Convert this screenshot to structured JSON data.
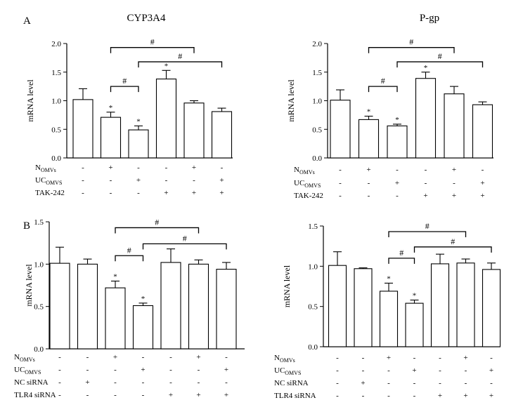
{
  "panel_labels": [
    "A",
    "B"
  ],
  "chart_data": [
    {
      "type": "bar",
      "title": "CYP3A4",
      "ylabel": "mRNA level",
      "xlabel": "",
      "ylim": [
        0,
        2.0
      ],
      "yticks": [
        "0.0",
        "0.5",
        "1.0",
        "1.5",
        "2.0"
      ],
      "yticks_values": [
        0,
        0.5,
        1.0,
        1.5,
        2.0
      ],
      "values": [
        1.02,
        0.71,
        0.49,
        1.38,
        0.96,
        0.81
      ],
      "errors": [
        0.19,
        0.09,
        0.07,
        0.15,
        0.04,
        0.06
      ],
      "stars": [
        false,
        true,
        true,
        true,
        false,
        false
      ],
      "brackets": [
        {
          "from": 1,
          "to": 2,
          "level": 1.25,
          "label": "#"
        },
        {
          "from": 1,
          "to": 4,
          "level": 1.93,
          "label": "#"
        },
        {
          "from": 2,
          "to": 5,
          "level": 1.68,
          "label": "#"
        }
      ],
      "rows": [
        {
          "label": "N",
          "sub": "OMVs",
          "marks": [
            "-",
            "+",
            "-",
            "-",
            "+",
            "-"
          ]
        },
        {
          "label": "UC",
          "sub": "OMVS",
          "marks": [
            "-",
            "-",
            "+",
            "-",
            "-",
            "+"
          ]
        },
        {
          "label": "TAK-242",
          "sub": "",
          "marks": [
            "-",
            "-",
            "-",
            "+",
            "+",
            "+"
          ]
        }
      ]
    },
    {
      "type": "bar",
      "title": "P-gp",
      "ylabel": "mRNA level",
      "xlabel": "",
      "ylim": [
        0,
        2.0
      ],
      "yticks": [
        "0.0",
        "0.5",
        "1.0",
        "1.5",
        "2.0"
      ],
      "yticks_values": [
        0,
        0.5,
        1.0,
        1.5,
        2.0
      ],
      "values": [
        1.01,
        0.67,
        0.56,
        1.39,
        1.12,
        0.93
      ],
      "errors": [
        0.18,
        0.06,
        0.03,
        0.11,
        0.13,
        0.05
      ],
      "stars": [
        false,
        true,
        true,
        true,
        false,
        false
      ],
      "brackets": [
        {
          "from": 1,
          "to": 2,
          "level": 1.25,
          "label": "#"
        },
        {
          "from": 1,
          "to": 4,
          "level": 1.93,
          "label": "#"
        },
        {
          "from": 2,
          "to": 5,
          "level": 1.68,
          "label": "#"
        }
      ],
      "rows": [
        {
          "label": "N",
          "sub": "OMVs",
          "marks": [
            "-",
            "+",
            "-",
            "-",
            "+",
            "-"
          ]
        },
        {
          "label": "UC",
          "sub": "OMVS",
          "marks": [
            "-",
            "-",
            "+",
            "-",
            "-",
            "+"
          ]
        },
        {
          "label": "TAK-242",
          "sub": "",
          "marks": [
            "-",
            "-",
            "-",
            "+",
            "+",
            "+"
          ]
        }
      ]
    },
    {
      "type": "bar",
      "title": "",
      "ylabel": "mRNA level",
      "xlabel": "",
      "ylim": [
        0,
        1.5
      ],
      "yticks": [
        "0.0",
        "0.5",
        "1.0",
        "1.5"
      ],
      "yticks_values": [
        0,
        0.5,
        1.0,
        1.5
      ],
      "values": [
        1.01,
        1.0,
        0.72,
        0.51,
        1.02,
        1.0,
        0.94
      ],
      "errors": [
        0.19,
        0.06,
        0.08,
        0.03,
        0.16,
        0.05,
        0.08
      ],
      "stars": [
        false,
        false,
        true,
        true,
        false,
        false,
        false
      ],
      "brackets": [
        {
          "from": 2,
          "to": 3,
          "level": 1.1,
          "label": "#"
        },
        {
          "from": 2,
          "to": 5,
          "level": 1.43,
          "label": "#"
        },
        {
          "from": 3,
          "to": 6,
          "level": 1.24,
          "label": "#"
        }
      ],
      "rows": [
        {
          "label": "N",
          "sub": "OMVs",
          "marks": [
            "-",
            "-",
            "+",
            "-",
            "-",
            "+",
            "-"
          ]
        },
        {
          "label": "UC",
          "sub": "OMVS",
          "marks": [
            "-",
            "-",
            "-",
            "+",
            "-",
            "-",
            "+"
          ]
        },
        {
          "label": "NC siRNA",
          "sub": "",
          "marks": [
            "-",
            "+",
            "-",
            "-",
            "-",
            "-",
            "-"
          ]
        },
        {
          "label": "TLR4 siRNA",
          "sub": "",
          "marks": [
            "-",
            "-",
            "-",
            "-",
            "+",
            "+",
            "+"
          ]
        }
      ]
    },
    {
      "type": "bar",
      "title": "",
      "ylabel": "mRNA level",
      "xlabel": "",
      "ylim": [
        0,
        1.5
      ],
      "yticks": [
        "0.0",
        "0.5",
        "1.0",
        "1.5"
      ],
      "yticks_values": [
        0,
        0.5,
        1.0,
        1.5
      ],
      "values": [
        1.01,
        0.97,
        0.69,
        0.54,
        1.03,
        1.04,
        0.96
      ],
      "errors": [
        0.17,
        0.01,
        0.1,
        0.04,
        0.12,
        0.05,
        0.08
      ],
      "stars": [
        false,
        false,
        true,
        true,
        false,
        false,
        false
      ],
      "brackets": [
        {
          "from": 2,
          "to": 3,
          "level": 1.1,
          "label": "#"
        },
        {
          "from": 2,
          "to": 5,
          "level": 1.43,
          "label": "#"
        },
        {
          "from": 3,
          "to": 6,
          "level": 1.24,
          "label": "#"
        }
      ],
      "rows": [
        {
          "label": "N",
          "sub": "OMVs",
          "marks": [
            "-",
            "-",
            "+",
            "-",
            "-",
            "+",
            "-"
          ]
        },
        {
          "label": "UC",
          "sub": "OMVS",
          "marks": [
            "-",
            "-",
            "-",
            "+",
            "-",
            "-",
            "+"
          ]
        },
        {
          "label": "NC siRNA",
          "sub": "",
          "marks": [
            "-",
            "+",
            "-",
            "-",
            "-",
            "-",
            "-"
          ]
        },
        {
          "label": "TLR4 siRNA",
          "sub": "",
          "marks": [
            "-",
            "-",
            "-",
            "-",
            "+",
            "+",
            "+"
          ]
        }
      ]
    }
  ]
}
